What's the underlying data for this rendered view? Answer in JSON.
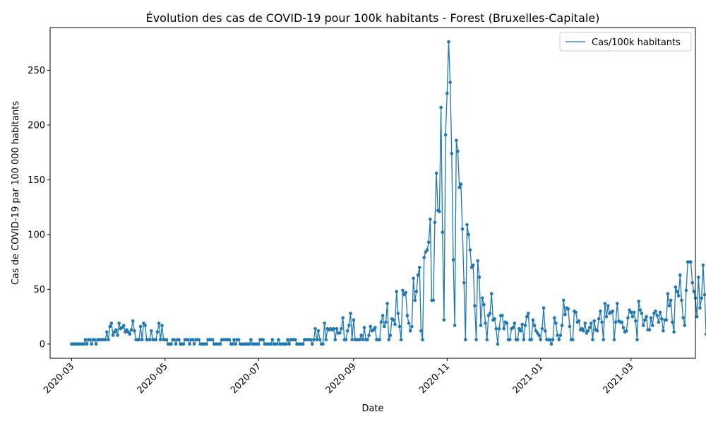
{
  "chart_data": {
    "type": "line",
    "title": "Évolution des cas de COVID-19 pour 100k habitants - Forest (Bruxelles-Capitale)",
    "xlabel": "Date",
    "ylabel": "Cas de COVID-19 par 100 000 habitants",
    "xlim": [
      "2020-02-16",
      "2021-04-12"
    ],
    "ylim": [
      -13,
      289
    ],
    "x_ticks": [
      "2020-03-01",
      "2020-05-01",
      "2020-07-01",
      "2020-09-01",
      "2020-11-01",
      "2021-01-01",
      "2021-03-01"
    ],
    "x_tick_labels": [
      "2020-03",
      "2020-05",
      "2020-07",
      "2020-09",
      "2020-11",
      "2021-01",
      "2021-03"
    ],
    "y_ticks": [
      0,
      50,
      100,
      150,
      200,
      250
    ],
    "grid": false,
    "legend_position": "top-right",
    "series": [
      {
        "name": "Cas/100k habitants",
        "color": "#1f77b4",
        "marker": "circle",
        "start_date": "2020-03-01",
        "step": "1 day",
        "values": [
          0,
          0,
          0,
          0,
          0,
          0,
          0,
          0,
          0,
          4,
          0,
          4,
          4,
          0,
          4,
          4,
          0,
          4,
          4,
          4,
          4,
          4,
          4,
          11,
          4,
          16,
          19,
          8,
          11,
          13,
          8,
          19,
          14,
          15,
          17,
          11,
          13,
          11,
          9,
          13,
          21,
          12,
          4,
          4,
          4,
          16,
          4,
          19,
          17,
          4,
          4,
          4,
          12,
          4,
          4,
          4,
          11,
          19,
          4,
          17,
          4,
          4,
          4,
          0,
          0,
          0,
          4,
          4,
          0,
          4,
          4,
          0,
          0,
          0,
          4,
          4,
          4,
          0,
          4,
          4,
          0,
          4,
          4,
          4,
          0,
          0,
          0,
          0,
          0,
          4,
          4,
          4,
          4,
          0,
          0,
          0,
          0,
          0,
          4,
          4,
          4,
          4,
          4,
          4,
          0,
          0,
          4,
          0,
          4,
          4,
          0,
          0,
          0,
          0,
          0,
          0,
          0,
          4,
          0,
          0,
          0,
          0,
          0,
          4,
          4,
          4,
          0,
          0,
          0,
          0,
          0,
          4,
          0,
          0,
          0,
          4,
          0,
          0,
          0,
          0,
          0,
          4,
          0,
          4,
          4,
          4,
          4,
          0,
          0,
          0,
          0,
          0,
          4,
          4,
          4,
          4,
          4,
          0,
          4,
          14,
          4,
          12,
          4,
          0,
          0,
          19,
          4,
          14,
          13,
          14,
          13,
          14,
          4,
          14,
          10,
          10,
          14,
          24,
          4,
          4,
          12,
          17,
          28,
          4,
          22,
          4,
          4,
          4,
          4,
          8,
          4,
          15,
          4,
          4,
          8,
          16,
          12,
          13,
          15,
          4,
          4,
          4,
          20,
          26,
          16,
          20,
          37,
          4,
          8,
          23,
          22,
          18,
          48,
          28,
          16,
          4,
          49,
          45,
          47,
          26,
          19,
          12,
          16,
          60,
          40,
          48,
          63,
          70,
          12,
          4,
          79,
          84,
          86,
          93,
          114,
          40,
          40,
          111,
          156,
          122,
          121,
          216,
          102,
          22,
          191,
          229,
          276,
          239,
          174,
          77,
          17,
          186,
          176,
          143,
          146,
          105,
          56,
          4,
          109,
          100,
          86,
          70,
          72,
          35,
          4,
          76,
          61,
          17,
          42,
          36,
          19,
          4,
          26,
          28,
          46,
          22,
          23,
          14,
          0,
          14,
          26,
          26,
          14,
          20,
          19,
          4,
          4,
          14,
          15,
          19,
          4,
          4,
          14,
          12,
          18,
          4,
          17,
          25,
          28,
          4,
          4,
          22,
          17,
          12,
          10,
          8,
          4,
          14,
          33,
          12,
          4,
          4,
          4,
          0,
          4,
          24,
          19,
          8,
          4,
          8,
          17,
          40,
          27,
          33,
          32,
          16,
          4,
          4,
          30,
          29,
          20,
          21,
          13,
          14,
          12,
          19,
          10,
          12,
          15,
          19,
          4,
          21,
          13,
          12,
          23,
          30,
          20,
          4,
          37,
          25,
          35,
          28,
          29,
          30,
          4,
          20,
          37,
          21,
          20,
          20,
          15,
          11,
          12,
          24,
          31,
          29,
          25,
          29,
          21,
          4,
          39,
          31,
          28,
          17,
          22,
          25,
          13,
          13,
          24,
          17,
          28,
          30,
          26,
          20,
          29,
          23,
          12,
          22,
          22,
          46,
          35,
          40,
          20,
          11,
          52,
          48,
          44,
          63,
          40,
          24,
          17,
          49,
          75,
          75,
          75,
          56,
          48,
          42,
          25,
          61,
          33,
          42,
          72,
          45,
          9,
          0
        ]
      }
    ]
  }
}
